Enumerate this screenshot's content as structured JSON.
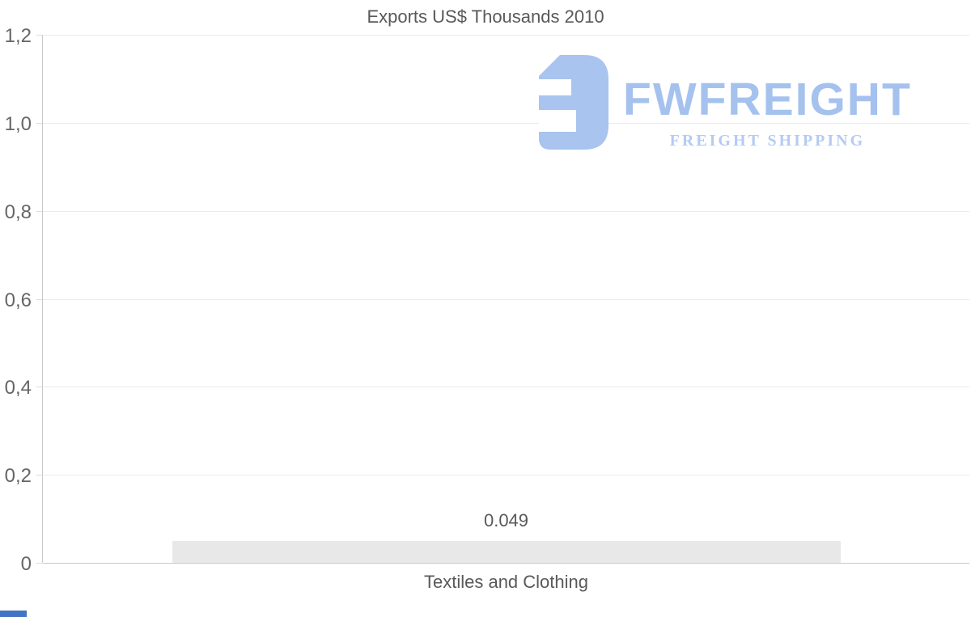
{
  "header": {
    "title": "Exports US$ Thousands 2010"
  },
  "watermark": {
    "brand": "FWFREIGHT",
    "tagline": "FREIGHT SHIPPING",
    "icon": "fwfreight-logo-icon",
    "brand_color": "#a5c2ee",
    "tagline_color": "#b4cbf3",
    "icon_color": "#a8c4ef"
  },
  "chart_data": {
    "type": "bar",
    "title": "Exports US$ Thousands 2010",
    "categories": [
      "Textiles and Clothing"
    ],
    "values": [
      0.049
    ],
    "data_labels": [
      "0.049"
    ],
    "xlabel": "",
    "ylabel": "",
    "ylim": [
      0,
      1.2
    ],
    "ytick_values": [
      0,
      0.2,
      0.4,
      0.6,
      0.8,
      1.0,
      1.2
    ],
    "ytick_labels": [
      "0",
      "0,2",
      "0,4",
      "0,6",
      "0,8",
      "1,0",
      "1,2"
    ],
    "decimal_separator_axis": "comma",
    "grid": "horizontal",
    "legend_position": "none",
    "bar_color": "#e8e8e8",
    "grid_color": "#ebebeb",
    "axis_color": "#c9c9c9",
    "tick_label_color": "#666666",
    "text_color": "#595959"
  },
  "accent": {
    "bottom_left_color": "#4472c4"
  }
}
